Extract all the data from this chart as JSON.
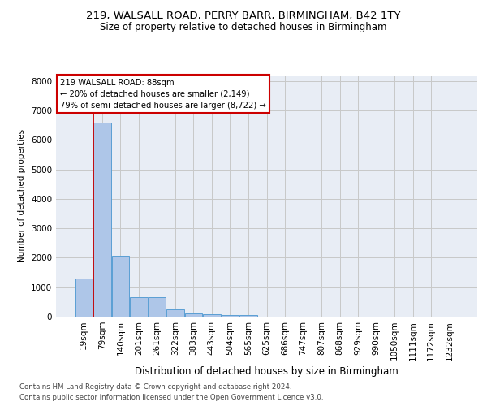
{
  "title1": "219, WALSALL ROAD, PERRY BARR, BIRMINGHAM, B42 1TY",
  "title2": "Size of property relative to detached houses in Birmingham",
  "xlabel": "Distribution of detached houses by size in Birmingham",
  "ylabel": "Number of detached properties",
  "footnote1": "Contains HM Land Registry data © Crown copyright and database right 2024.",
  "footnote2": "Contains public sector information licensed under the Open Government Licence v3.0.",
  "annotation_title": "219 WALSALL ROAD: 88sqm",
  "annotation_line1": "← 20% of detached houses are smaller (2,149)",
  "annotation_line2": "79% of semi-detached houses are larger (8,722) →",
  "bar_categories": [
    "19sqm",
    "79sqm",
    "140sqm",
    "201sqm",
    "261sqm",
    "322sqm",
    "383sqm",
    "443sqm",
    "504sqm",
    "565sqm",
    "625sqm",
    "686sqm",
    "747sqm",
    "807sqm",
    "868sqm",
    "929sqm",
    "990sqm",
    "1050sqm",
    "1111sqm",
    "1172sqm",
    "1232sqm"
  ],
  "bar_values": [
    1300,
    6600,
    2080,
    650,
    650,
    240,
    120,
    90,
    50,
    50,
    0,
    0,
    0,
    0,
    0,
    0,
    0,
    0,
    0,
    0,
    0
  ],
  "bar_color": "#aec6e8",
  "bar_edge_color": "#5a9fd4",
  "vline_color": "#cc0000",
  "vline_x": 0.525,
  "ylim_max": 8200,
  "yticks": [
    0,
    1000,
    2000,
    3000,
    4000,
    5000,
    6000,
    7000,
    8000
  ],
  "grid_color": "#c8c8c8",
  "bg_color": "#e8edf5",
  "annotation_edge_color": "#cc0000",
  "title1_fontsize": 9.5,
  "title2_fontsize": 8.5,
  "footnote_fontsize": 6.2,
  "ylabel_fontsize": 7.5,
  "xlabel_fontsize": 8.5
}
